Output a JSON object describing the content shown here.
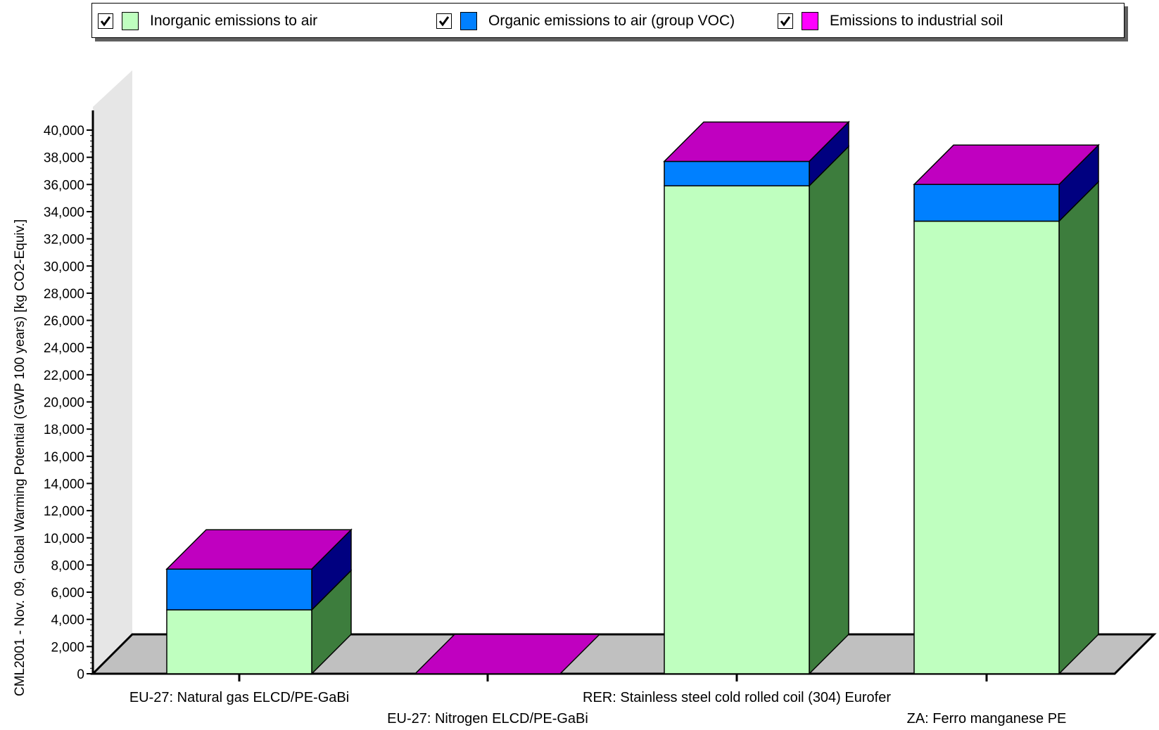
{
  "legend": {
    "items": [
      {
        "label": "Inorganic emissions to air",
        "checked": true,
        "color": "#bfffbf"
      },
      {
        "label": "Organic emissions to air (group VOC)",
        "checked": true,
        "color": "#0080ff"
      },
      {
        "label": "Emissions to industrial soil",
        "checked": true,
        "color": "#ff00ff"
      }
    ]
  },
  "chart_data": {
    "type": "bar",
    "stacked": true,
    "three_d": true,
    "title": "",
    "xlabel": "",
    "ylabel": "CML2001 - Nov. 09, Global Warming Potential (GWP 100 years)  [kg CO2-Equiv.]",
    "ylim": [
      0,
      40000
    ],
    "yticks": [
      "0",
      "2,000",
      "4,000",
      "6,000",
      "8,000",
      "10,000",
      "12,000",
      "14,000",
      "16,000",
      "18,000",
      "20,000",
      "22,000",
      "24,000",
      "26,000",
      "28,000",
      "30,000",
      "32,000",
      "34,000",
      "36,000",
      "38,000",
      "40,000"
    ],
    "categories": [
      "EU-27: Natural gas ELCD/PE-GaBi",
      "EU-27: Nitrogen ELCD/PE-GaBi",
      "RER: Stainless steel cold rolled coil (304) Eurofer",
      "ZA: Ferro manganese PE"
    ],
    "series": [
      {
        "name": "Inorganic emissions to air",
        "values": [
          4700,
          0,
          35900,
          33300
        ]
      },
      {
        "name": "Organic emissions to air (group VOC)",
        "values": [
          3000,
          0,
          1800,
          2700
        ]
      },
      {
        "name": "Emissions to industrial soil",
        "values": [
          0,
          0,
          0,
          0
        ]
      }
    ],
    "colors": {
      "front": [
        "#bfffbf",
        "#0080ff",
        "#ff00ff"
      ],
      "side": [
        "#3d7d3d",
        "#000080",
        "#800080"
      ],
      "top": "#c000c0",
      "floor": "#c0c0c0",
      "wall": "#e6e6e6"
    },
    "legend": "top",
    "grid": false
  }
}
